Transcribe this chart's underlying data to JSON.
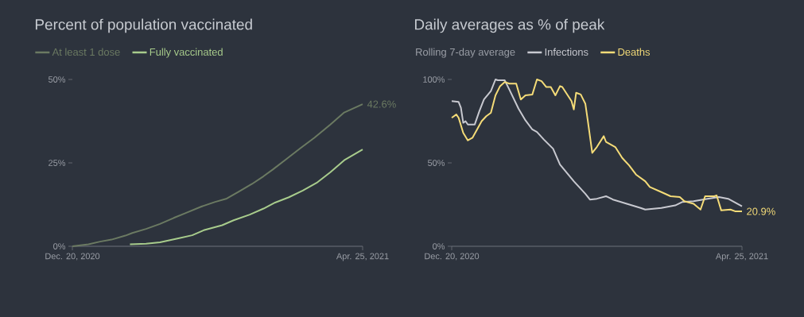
{
  "chart_data": [
    {
      "type": "line",
      "title": "Percent of population vaccinated",
      "legend": "top left",
      "xlim": [
        "2020-12-20",
        "2021-04-25"
      ],
      "xticks": [
        {
          "value": "2020-12-20",
          "label": "Dec. 20, 2020"
        },
        {
          "value": "2021-04-25",
          "label": "Apr. 25, 2021"
        }
      ],
      "ylim": [
        0,
        50
      ],
      "yticks": [
        {
          "value": 0,
          "label": "0%"
        },
        {
          "value": 25,
          "label": "25%"
        },
        {
          "value": 50,
          "label": "50%"
        }
      ],
      "series": [
        {
          "name": "At least 1 dose",
          "color": "#6b7a62",
          "x": [
            "2020-12-20",
            "2020-12-27",
            "2021-01-01",
            "2021-01-06",
            "2021-01-12",
            "2021-01-15",
            "2021-01-21",
            "2021-01-27",
            "2021-02-02",
            "2021-02-07",
            "2021-02-14",
            "2021-02-20",
            "2021-02-25",
            "2021-03-02",
            "2021-03-08",
            "2021-03-13",
            "2021-03-17",
            "2021-03-23",
            "2021-03-29",
            "2021-04-04",
            "2021-04-11",
            "2021-04-17",
            "2021-04-25"
          ],
          "values": [
            0,
            0.6,
            1.4,
            2.0,
            3.2,
            4.0,
            5.2,
            6.7,
            8.5,
            9.9,
            11.9,
            13.3,
            14.3,
            16.3,
            18.7,
            21.0,
            23.0,
            26.2,
            29.4,
            32.5,
            36.5,
            40.1,
            42.6
          ]
        },
        {
          "name": "Fully vaccinated",
          "color": "#a8cc8c",
          "x": [
            "2021-01-14",
            "2021-01-21",
            "2021-01-27",
            "2021-02-04",
            "2021-02-10",
            "2021-02-15",
            "2021-02-23",
            "2021-02-28",
            "2021-03-07",
            "2021-03-13",
            "2021-03-18",
            "2021-03-24",
            "2021-03-30",
            "2021-04-05",
            "2021-04-11",
            "2021-04-17",
            "2021-04-25"
          ],
          "values": [
            0.6,
            0.8,
            1.2,
            2.4,
            3.3,
            4.8,
            6.3,
            7.8,
            9.5,
            11.3,
            13.1,
            14.7,
            16.7,
            19.0,
            22.2,
            25.8,
            29.0
          ]
        }
      ],
      "annotations": [
        {
          "text": "42.6%",
          "x": "2021-04-25",
          "y": 42.6
        }
      ]
    },
    {
      "type": "line",
      "title": "Daily averages as % of peak",
      "legend": "top left",
      "legend_title": "Rolling 7-day average",
      "xlim": [
        "2020-12-20",
        "2021-04-25"
      ],
      "xticks": [
        {
          "value": "2020-12-20",
          "label": "Dec. 20, 2020"
        },
        {
          "value": "2021-04-25",
          "label": "Apr. 25, 2021"
        }
      ],
      "ylim": [
        0,
        100
      ],
      "yticks": [
        {
          "value": 0,
          "label": "0%"
        },
        {
          "value": 50,
          "label": "50%"
        },
        {
          "value": 100,
          "label": "100%"
        }
      ],
      "series": [
        {
          "name": "Infections",
          "color": "#c8c9d0",
          "x": [
            "2020-12-20",
            "2020-12-23",
            "2020-12-24",
            "2020-12-25",
            "2020-12-26",
            "2020-12-27",
            "2020-12-30",
            "2021-01-01",
            "2021-01-03",
            "2021-01-06",
            "2021-01-08",
            "2021-01-09",
            "2021-01-12",
            "2021-01-14",
            "2021-01-18",
            "2021-01-21",
            "2021-01-24",
            "2021-01-26",
            "2021-01-29",
            "2021-02-02",
            "2021-02-05",
            "2021-02-11",
            "2021-02-16",
            "2021-02-18",
            "2021-02-21",
            "2021-02-25",
            "2021-02-28",
            "2021-03-06",
            "2021-03-12",
            "2021-03-14",
            "2021-03-21",
            "2021-03-27",
            "2021-03-30",
            "2021-04-04",
            "2021-04-10",
            "2021-04-15",
            "2021-04-19",
            "2021-04-25"
          ],
          "values": [
            87,
            86.5,
            83,
            74,
            75,
            73,
            73,
            81,
            88,
            93,
            100,
            99.5,
            99.5,
            94,
            82.5,
            75.5,
            70,
            68.5,
            64,
            58.5,
            49,
            39,
            31.5,
            28,
            28.5,
            30,
            28,
            25.5,
            23,
            22,
            23,
            24.5,
            26.5,
            27,
            28.5,
            29.5,
            28.5,
            24
          ]
        },
        {
          "name": "Deaths",
          "color": "#f5dc78",
          "x": [
            "2020-12-20",
            "2020-12-22",
            "2020-12-23",
            "2020-12-25",
            "2020-12-27",
            "2020-12-29",
            "2021-01-02",
            "2021-01-04",
            "2021-01-06",
            "2021-01-08",
            "2021-01-10",
            "2021-01-12",
            "2021-01-14",
            "2021-01-17",
            "2021-01-19",
            "2021-01-21",
            "2021-01-24",
            "2021-01-26",
            "2021-01-28",
            "2021-01-30",
            "2021-02-01",
            "2021-02-03",
            "2021-02-05",
            "2021-02-06",
            "2021-02-10",
            "2021-02-11",
            "2021-02-12",
            "2021-02-14",
            "2021-02-16",
            "2021-02-17",
            "2021-02-19",
            "2021-02-21",
            "2021-02-24",
            "2021-02-25",
            "2021-03-01",
            "2021-03-04",
            "2021-03-07",
            "2021-03-10",
            "2021-03-14",
            "2021-03-16",
            "2021-03-21",
            "2021-03-25",
            "2021-03-29",
            "2021-03-31",
            "2021-04-04",
            "2021-04-07",
            "2021-04-09",
            "2021-04-13",
            "2021-04-14",
            "2021-04-16",
            "2021-04-20",
            "2021-04-22",
            "2021-04-25"
          ],
          "values": [
            77,
            79,
            77,
            68,
            63.5,
            65,
            75,
            78,
            80,
            90.5,
            96,
            98.5,
            97.5,
            97.5,
            88,
            90.5,
            91,
            100,
            99,
            95.5,
            95.5,
            90.5,
            96,
            95.5,
            87,
            82,
            92,
            91,
            85.5,
            76,
            56,
            59.5,
            66,
            62.5,
            59.5,
            53,
            48.5,
            43,
            39,
            35.5,
            32.5,
            30,
            29.5,
            27,
            25.5,
            22,
            30,
            30,
            30.5,
            21.5,
            22,
            21,
            20.9
          ]
        }
      ],
      "annotations": [
        {
          "text": "20.9%",
          "x": "2021-04-25",
          "y": 20.9
        }
      ]
    }
  ]
}
